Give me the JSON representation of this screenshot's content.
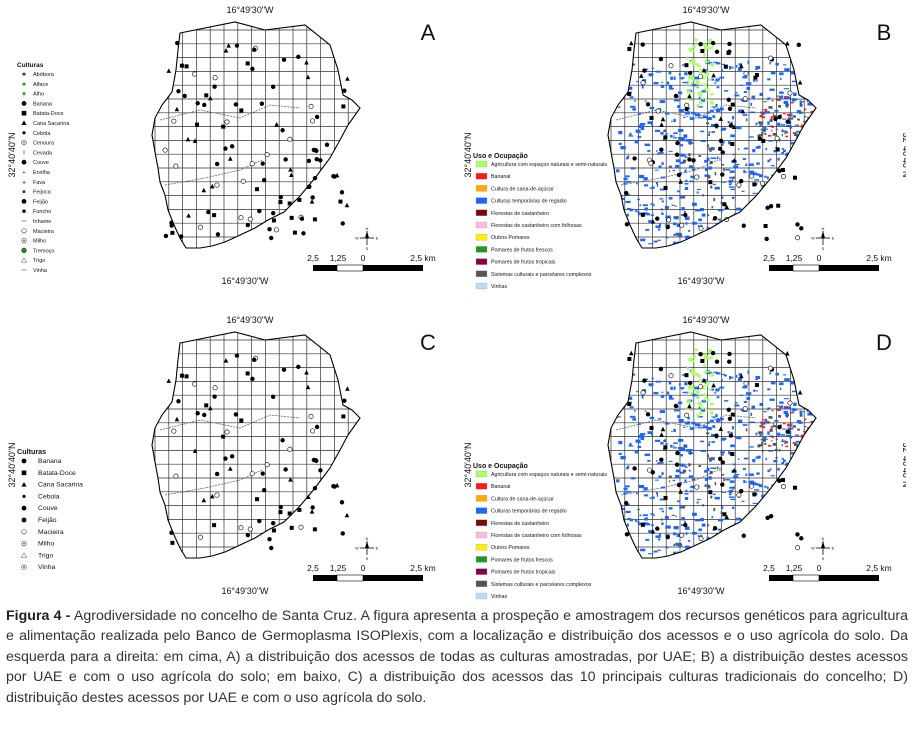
{
  "panels": [
    {
      "id": "A",
      "letter": "A",
      "coord_top": "16°49'30\"W",
      "coord_bottom": "16°49'30\"W",
      "coord_left": "32°40'40\"N",
      "coord_right": "",
      "legend_title": "Culturas",
      "legend": [
        {
          "label": "Abóbora",
          "sym": "star"
        },
        {
          "label": "Alface",
          "sym": "star-green"
        },
        {
          "label": "Alho",
          "sym": "star-green"
        },
        {
          "label": "Banana",
          "sym": "dot"
        },
        {
          "label": "Batata-Doce",
          "sym": "square"
        },
        {
          "label": "Cana Sacarina",
          "sym": "triangle"
        },
        {
          "label": "Cebola",
          "sym": "dot-sm"
        },
        {
          "label": "Cenoura",
          "sym": "circle-dot"
        },
        {
          "label": "Cevada",
          "sym": "wheat"
        },
        {
          "label": "Couve",
          "sym": "dot"
        },
        {
          "label": "Ervilha",
          "sym": "plus-sm"
        },
        {
          "label": "Fava",
          "sym": "plus"
        },
        {
          "label": "Feijoca",
          "sym": "star"
        },
        {
          "label": "Feijão",
          "sym": "dot"
        },
        {
          "label": "Funcho",
          "sym": "square-sm"
        },
        {
          "label": "Inhame",
          "sym": "dash"
        },
        {
          "label": "Macieira",
          "sym": "ring"
        },
        {
          "label": "Milho",
          "sym": "circle-dot"
        },
        {
          "label": "Tremoço",
          "sym": "dot-green"
        },
        {
          "label": "Trigo",
          "sym": "tri-open"
        },
        {
          "label": "Vinha",
          "sym": "dash"
        }
      ],
      "scale": {
        "left": "2,5",
        "mid": "1,25",
        "zero": "0",
        "right": "2,5 km"
      }
    },
    {
      "id": "B",
      "letter": "B",
      "coord_top": "16°49'30\"W",
      "coord_bottom": "16°49'30\"W",
      "coord_left": "32°40'40\"N",
      "coord_right": "32°40'40\"N",
      "legend_title": "Uso e Ocupação",
      "legend": [
        {
          "label": "Agricultura com espaços naturais e semi-naturais",
          "color": "#aaff66"
        },
        {
          "label": "Bananal",
          "color": "#ff1a1a"
        },
        {
          "label": "Cultura de cana-de-açúcar",
          "color": "#ffaa00"
        },
        {
          "label": "Culturas temporárias de regadio",
          "color": "#1a66ff"
        },
        {
          "label": "Florestas de castanheiro",
          "color": "#7a0a0a"
        },
        {
          "label": "Florestas de castanheiro com folhosas",
          "color": "#ffbbdd"
        },
        {
          "label": "Outros Pomares",
          "color": "#ffee00"
        },
        {
          "label": "Pomares de frutos frescos",
          "color": "#229922"
        },
        {
          "label": "Pomares de frutos tropicais",
          "color": "#880044"
        },
        {
          "label": "Sistemas culturais e parcelares complexos",
          "color": "#555555"
        },
        {
          "label": "Vinhas",
          "color": "#bbddee"
        }
      ],
      "scale": {
        "left": "2,5",
        "mid": "1,25",
        "zero": "0",
        "right": "2,5 km"
      }
    },
    {
      "id": "C",
      "letter": "C",
      "coord_top": "16°49'30\"W",
      "coord_bottom": "16°49'30\"W",
      "coord_left": "32°40'40\"N",
      "coord_right": "",
      "legend_title": "Culturas",
      "legend": [
        {
          "label": "Banana",
          "sym": "dot"
        },
        {
          "label": "Batata-Doce",
          "sym": "square"
        },
        {
          "label": "Cana Sacarina",
          "sym": "triangle"
        },
        {
          "label": "Cebola",
          "sym": "dot-sm"
        },
        {
          "label": "Couve",
          "sym": "dot"
        },
        {
          "label": "Feijão",
          "sym": "dot"
        },
        {
          "label": "Macieira",
          "sym": "ring"
        },
        {
          "label": "Milho",
          "sym": "circle-dot"
        },
        {
          "label": "Trigo",
          "sym": "tri-open"
        },
        {
          "label": "Vinha",
          "sym": "circle-dot"
        }
      ],
      "scale": {
        "left": "2,5",
        "mid": "1,25",
        "zero": "0",
        "right": "2,5 km"
      }
    },
    {
      "id": "D",
      "letter": "D",
      "coord_top": "16°49'30\"W",
      "coord_bottom": "16°49'30\"W",
      "coord_left": "32°40'40\"N",
      "coord_right": "32°40'40\"N",
      "legend_title": "Uso e Ocupação",
      "legend": [
        {
          "label": "Agricultura com espaços naturais e semi-naturais",
          "color": "#aaff66"
        },
        {
          "label": "Bananal",
          "color": "#ff1a1a"
        },
        {
          "label": "Cultura de cana-de-açúcar",
          "color": "#ffaa00"
        },
        {
          "label": "Culturas temporárias de regadio",
          "color": "#1a66ff"
        },
        {
          "label": "Florestas de castanheiro",
          "color": "#7a0a0a"
        },
        {
          "label": "Florestas de castanheiro com folhosas",
          "color": "#ffbbdd"
        },
        {
          "label": "Outros Pomares",
          "color": "#ffee00"
        },
        {
          "label": "Pomares de frutos frescos",
          "color": "#229922"
        },
        {
          "label": "Pomares de frutos tropicais",
          "color": "#880044"
        },
        {
          "label": "Sistemas culturais e parcelares complexos",
          "color": "#555555"
        },
        {
          "label": "Vinhas",
          "color": "#bbddee"
        }
      ],
      "scale": {
        "left": "2,5",
        "mid": "1,25",
        "zero": "0",
        "right": "2,5 km"
      }
    }
  ],
  "caption": {
    "label": "Figura 4 -",
    "text": " Agrodiversidade no concelho de Santa Cruz. A figura apresenta a prospeção e amostragem dos recursos genéticos para agricultura e alimentação realizada pelo Banco de Germoplasma ISOPlexis, com a localização e distribuição dos acessos e o uso agrícola do solo. Da esquerda para a direita: em cima, A) a distribuição dos acessos de todas as culturas amostradas, por UAE; B) a distribuição destes acessos por UAE e com o uso agrícola do solo; em baixo, C) a distribuição dos acessos das 10 principais culturas tradicionais do concelho; D) distribuição destes acessos por UAE e com o uso agrícola do solo."
  },
  "north_arrow": {
    "n": "N",
    "s": "S",
    "e": "E",
    "w": "W"
  }
}
